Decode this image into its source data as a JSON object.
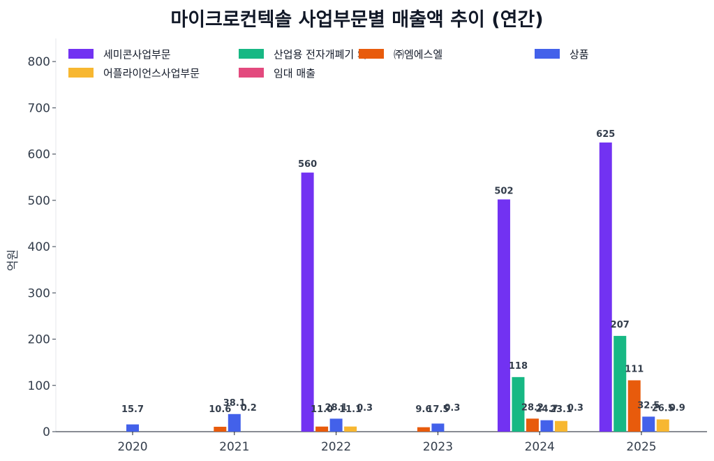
{
  "chart_data": {
    "type": "bar",
    "title": "마이크로컨텍솔 사업부문별 매출액 추이 (연간)",
    "ylabel": "억원",
    "xlabel": "",
    "ylim": [
      0,
      850
    ],
    "yticks": [
      0,
      100,
      200,
      300,
      400,
      500,
      600,
      700,
      800
    ],
    "categories": [
      "2020",
      "2021",
      "2022",
      "2023",
      "2024",
      "2025"
    ],
    "legend_position": "top-left",
    "series": [
      {
        "name": "세미콘사업부문",
        "color": "#7232f2",
        "values": [
          null,
          null,
          560,
          null,
          502,
          625
        ],
        "labels": [
          null,
          null,
          "560",
          null,
          "502",
          "625"
        ]
      },
      {
        "name": "산업용 전자개폐기 외",
        "color": "#17b884",
        "values": [
          null,
          null,
          null,
          null,
          118,
          207
        ],
        "labels": [
          null,
          null,
          null,
          null,
          "118",
          "207"
        ]
      },
      {
        "name": "㈜엠에스엘",
        "color": "#e85b0c",
        "values": [
          null,
          10.6,
          11.0,
          9.6,
          28.2,
          111
        ],
        "labels": [
          null,
          "10.6",
          "11.0",
          "9.6",
          "28.2",
          "111"
        ]
      },
      {
        "name": "상품",
        "color": "#4361ea",
        "values": [
          15.7,
          38.1,
          28.1,
          17.5,
          24.7,
          32.5
        ],
        "labels": [
          "15.7",
          "38.1",
          "28.1",
          "17.5",
          "24.7",
          "32.5"
        ]
      },
      {
        "name": "어플라이언스사업부문",
        "color": "#f7b731",
        "values": [
          null,
          null,
          11.1,
          null,
          23.1,
          26.5
        ],
        "labels": [
          null,
          null,
          "11.1",
          null,
          "23.1",
          "26.5"
        ]
      },
      {
        "name": "임대 매출",
        "color": "#e34a7e",
        "values": [
          null,
          0.2,
          0.3,
          0.3,
          0.3,
          0.9
        ],
        "labels": [
          null,
          "0.2",
          "0.3",
          "0.3",
          "0.3",
          "0.9"
        ]
      }
    ]
  }
}
